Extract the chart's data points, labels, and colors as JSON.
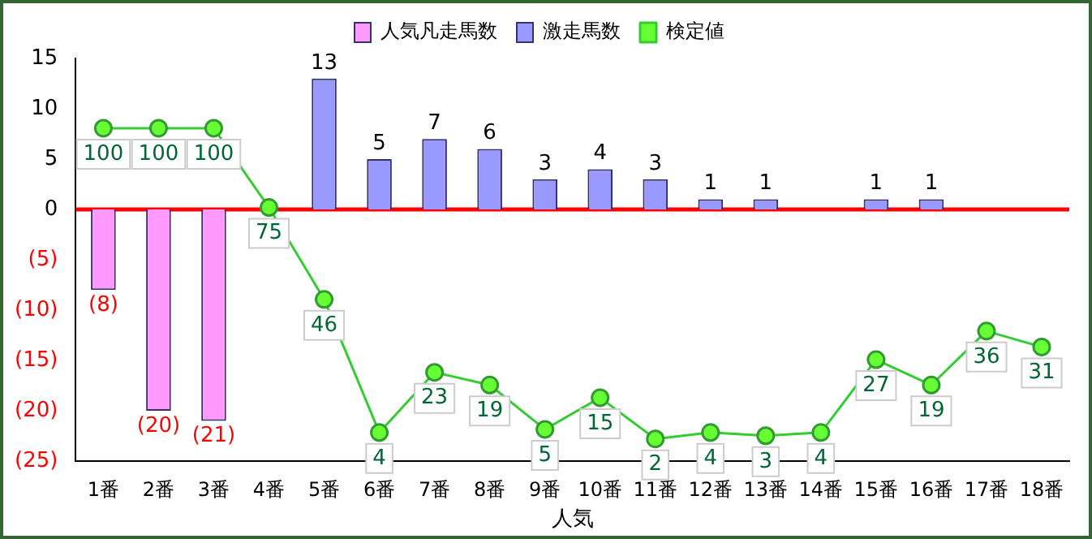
{
  "chart_data": {
    "type": "bar",
    "xlabel": "人気",
    "categories": [
      "1番",
      "2番",
      "3番",
      "4番",
      "5番",
      "6番",
      "7番",
      "8番",
      "9番",
      "10番",
      "11番",
      "12番",
      "13番",
      "14番",
      "15番",
      "16番",
      "17番",
      "18番"
    ],
    "stacked": true,
    "legend": "top",
    "grid": false,
    "marker": "circle",
    "line_style": "solid",
    "ylim": [
      -25,
      15
    ],
    "yticks": [
      {
        "value": -25,
        "label": "(25)"
      },
      {
        "value": -20,
        "label": "(20)"
      },
      {
        "value": -15,
        "label": "(15)"
      },
      {
        "value": -10,
        "label": "(10)"
      },
      {
        "value": -5,
        "label": "(5)"
      },
      0,
      5,
      10,
      15
    ],
    "y2lim": [
      -5,
      122
    ],
    "tick_labels": "xy",
    "ref_lines": [
      {
        "axis": "y",
        "value": 0,
        "color": "#ff0000"
      }
    ],
    "series": [
      {
        "name": "人気凡走馬数",
        "color": "#ff99ff",
        "values": [
          -8,
          -20,
          -21,
          null,
          null,
          null,
          null,
          null,
          null,
          null,
          null,
          null,
          null,
          null,
          null,
          null,
          null,
          null
        ],
        "value_labels": [
          "(8)",
          "(20)",
          "(21)",
          null,
          null,
          null,
          null,
          null,
          null,
          null,
          null,
          null,
          null,
          null,
          null,
          null,
          null,
          null
        ]
      },
      {
        "name": "激走馬数",
        "color": "#9999ff",
        "values": [
          null,
          null,
          null,
          null,
          13,
          5,
          7,
          6,
          3,
          4,
          3,
          1,
          1,
          null,
          1,
          1,
          null,
          null
        ],
        "value_labels": [
          null,
          null,
          null,
          null,
          "13",
          "5",
          "7",
          "6",
          "3",
          "4",
          "3",
          "1",
          "1",
          null,
          "1",
          "1",
          null,
          null
        ]
      },
      {
        "name": "検定値",
        "type": "line",
        "axis": "y2",
        "color": "#33cc33",
        "values": [
          100,
          100,
          100,
          75,
          46,
          4,
          23,
          19,
          5,
          15,
          2,
          4,
          3,
          4,
          27,
          19,
          36,
          31
        ],
        "value_labels": [
          "100",
          "100",
          "100",
          "75",
          "46",
          "4",
          "23",
          "19",
          "5",
          "15",
          "2",
          "4",
          "3",
          "4",
          "27",
          "19",
          "36",
          "31"
        ]
      }
    ]
  }
}
